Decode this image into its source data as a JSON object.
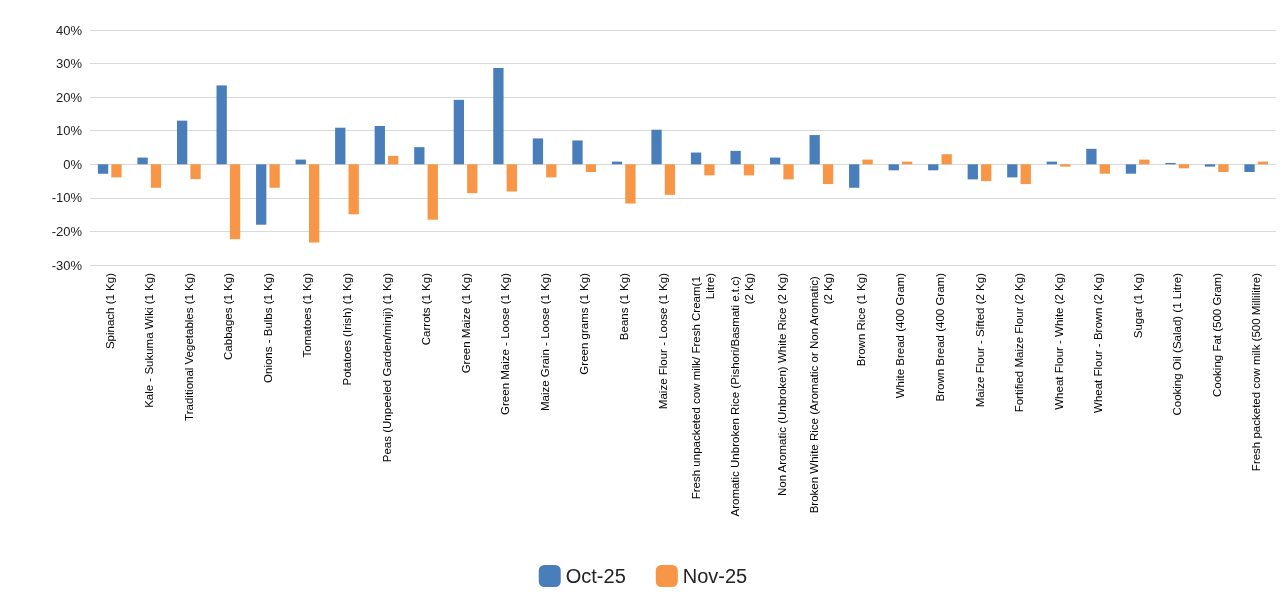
{
  "chart_data": {
    "type": "bar",
    "categories": [
      "Spinach (1 Kg)",
      "Kale - Sukuma Wiki (1 Kg)",
      "Traditional Vegetables (1 Kg)",
      "Cabbages (1 Kg)",
      "Onions - Bulbs (1 Kg)",
      "Tomatoes (1 Kg)",
      "Potatoes (Irish) (1 Kg)",
      "Peas (Unpeeled Garden/minji) (1 Kg)",
      "Carrots (1 Kg)",
      "Green Maize (1 Kg)",
      "Green Maize - Loose (1 Kg)",
      "Maize Grain - Loose (1 Kg)",
      "Green grams (1 Kg)",
      "Beans (1 Kg)",
      "Maize Flour - Loose (1 Kg)",
      "Fresh unpacketed cow milk/ Fresh Cream(1 Litre)",
      "Aromatic Unbroken Rice (Pishori/Basmati e.t.c) (2 Kg)",
      "Non Aromatic (Unbroken) White Rice (2 Kg)",
      "Broken White Rice (Aromatic or Non Aromatic) (2 Kg)",
      "Brown Rice (1 Kg)",
      "White Bread (400 Gram)",
      "Brown Bread (400 Gram)",
      "Maize Flour - Sifted (2 Kg)",
      "Fortified Maize Flour (2 Kg)",
      "Wheat Flour - White (2 Kg)",
      "Wheat Flour - Brown (2 Kg)",
      "Sugar (1 Kg)",
      "Cooking Oil (Salad) (1 Litre)",
      "Cooking Fat (500 Gram)",
      "Fresh packeted cow milk (500 Millilitre)"
    ],
    "series": [
      {
        "name": "Oct-25",
        "color": "#4a7ebb",
        "values": [
          -2.8,
          2.0,
          13.0,
          23.5,
          -18.0,
          1.4,
          10.9,
          11.4,
          5.1,
          19.2,
          28.7,
          7.7,
          7.1,
          0.8,
          10.3,
          3.5,
          4.0,
          2.0,
          8.7,
          -7.0,
          -1.8,
          -1.8,
          -4.5,
          -3.9,
          0.8,
          4.6,
          -2.8,
          0.4,
          -0.7,
          -2.3
        ]
      },
      {
        "name": "Nov-25",
        "color": "#f79646",
        "values": [
          -3.9,
          -7.0,
          -4.4,
          -22.3,
          -7.0,
          -23.3,
          -14.9,
          2.5,
          -16.5,
          -8.6,
          -8.1,
          -3.9,
          -2.3,
          -11.7,
          -9.1,
          -3.3,
          -3.3,
          -4.5,
          -5.9,
          1.4,
          0.8,
          3.0,
          -5.0,
          -5.9,
          -0.7,
          -2.8,
          1.4,
          -1.2,
          -2.3,
          0.8
        ]
      }
    ],
    "ylim": [
      -30,
      40
    ],
    "yticks": [
      {
        "value": -30,
        "label": "-30%"
      },
      {
        "value": -20,
        "label": "-20%"
      },
      {
        "value": -10,
        "label": "-10%"
      },
      {
        "value": 0,
        "label": "0%"
      },
      {
        "value": 10,
        "label": "10%"
      },
      {
        "value": 20,
        "label": "20%"
      },
      {
        "value": 30,
        "label": "30%"
      },
      {
        "value": 40,
        "label": "40%"
      }
    ],
    "grid": "y",
    "legend": "bottom"
  }
}
